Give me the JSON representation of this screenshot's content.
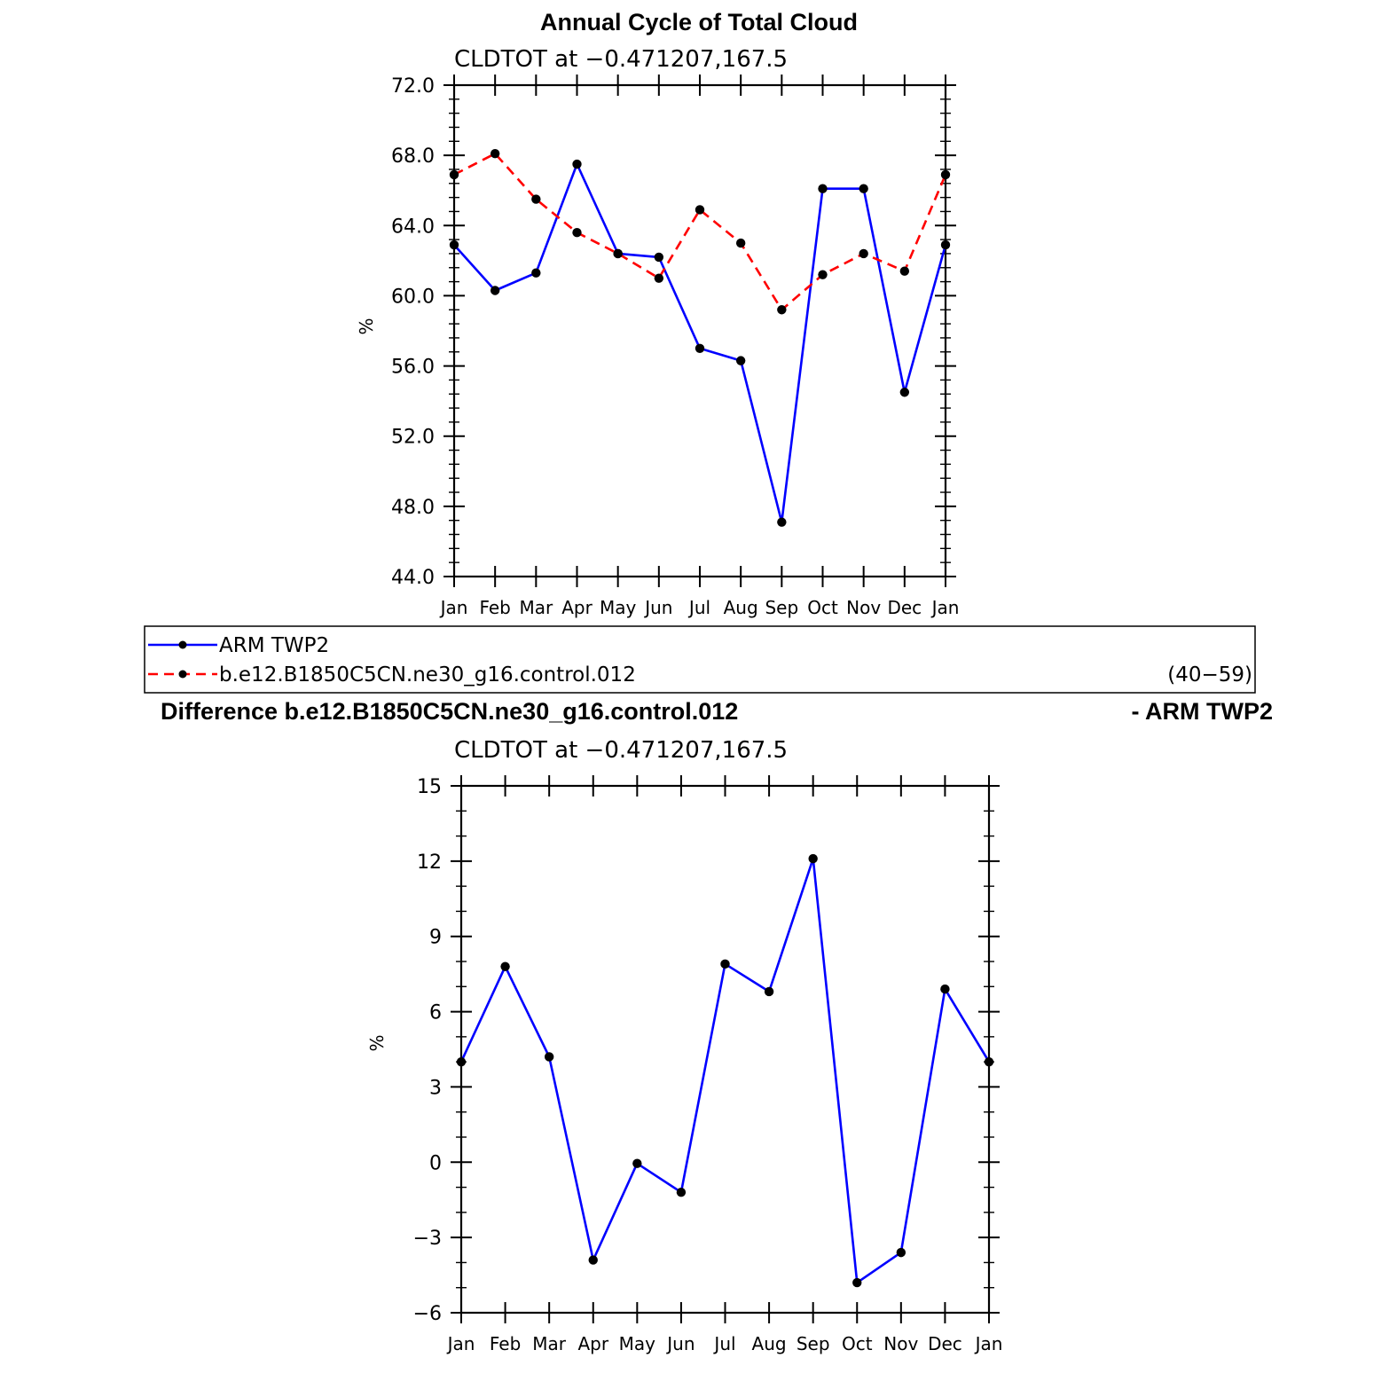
{
  "colors": {
    "obs": "#0000ff",
    "model": "#ff0000",
    "marker": "#000000",
    "axis": "#000000"
  },
  "chart_data": [
    {
      "type": "line",
      "title": "Annual Cycle of Total Cloud",
      "subtitle": "CLDTOT at −0.471207,167.5",
      "ylabel": "%",
      "ylim": [
        44,
        72
      ],
      "yticks": [
        44,
        48,
        52,
        56,
        60,
        64,
        68,
        72
      ],
      "ytick_labels": [
        "44.0",
        "48.0",
        "52.0",
        "56.0",
        "60.0",
        "64.0",
        "68.0",
        "72.0"
      ],
      "categories": [
        "Jan",
        "Feb",
        "Mar",
        "Apr",
        "May",
        "Jun",
        "Jul",
        "Aug",
        "Sep",
        "Oct",
        "Nov",
        "Dec",
        "Jan"
      ],
      "series": [
        {
          "name": "ARM TWP2",
          "style": "solid",
          "color": "#0000ff",
          "values": [
            62.9,
            60.3,
            61.3,
            67.5,
            62.4,
            62.2,
            57.0,
            56.3,
            47.1,
            66.1,
            66.1,
            54.5,
            62.9
          ]
        },
        {
          "name": "b.e12.B1850C5CN.ne30_g16.control.012",
          "style": "dashed",
          "color": "#ff0000",
          "values": [
            66.9,
            68.1,
            65.5,
            63.6,
            62.4,
            61.0,
            64.9,
            63.0,
            59.2,
            61.2,
            62.4,
            61.4,
            66.9
          ]
        }
      ],
      "legend": {
        "placement": "below",
        "entries": [
          "ARM TWP2",
          "b.e12.B1850C5CN.ne30_g16.control.012"
        ],
        "note": "(40−59)"
      }
    },
    {
      "type": "line",
      "title_left": "Difference b.e12.B1850C5CN.ne30_g16.control.012",
      "title_right": "- ARM TWP2",
      "subtitle": "CLDTOT at −0.471207,167.5",
      "ylabel": "%",
      "ylim": [
        -6,
        15
      ],
      "yticks": [
        -6,
        -3,
        0,
        3,
        6,
        9,
        12,
        15
      ],
      "ytick_labels": [
        "−6",
        "−3",
        "0",
        "3",
        "6",
        "9",
        "12",
        "15"
      ],
      "categories": [
        "Jan",
        "Feb",
        "Mar",
        "Apr",
        "May",
        "Jun",
        "Jul",
        "Aug",
        "Sep",
        "Oct",
        "Nov",
        "Dec",
        "Jan"
      ],
      "series": [
        {
          "style": "solid",
          "color": "#0000ff",
          "values": [
            4.0,
            7.8,
            4.2,
            -3.9,
            -0.05,
            -1.2,
            7.9,
            6.8,
            12.1,
            -4.8,
            -3.6,
            6.9,
            4.0
          ]
        }
      ]
    }
  ]
}
